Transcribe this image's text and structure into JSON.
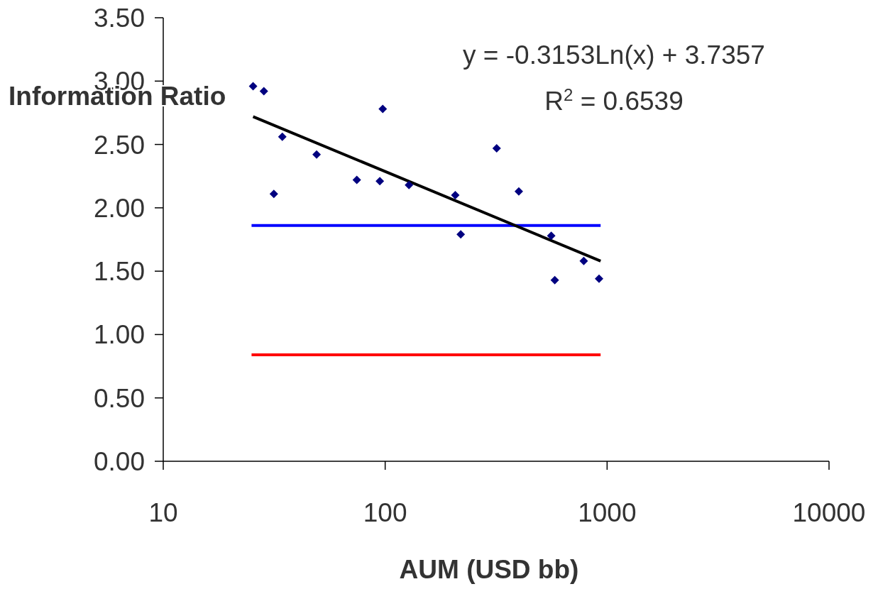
{
  "chart_data": {
    "type": "scatter",
    "xlabel": "AUM (USD bb)",
    "ylabel": "Information Ratio",
    "annotations": [
      "y = -0.3153Ln(x) + 3.7357",
      "R$^{2}$ = 0.6539"
    ],
    "log": "x",
    "xlim": [
      10,
      10000
    ],
    "xticks": [
      10,
      100,
      1000,
      10000
    ],
    "ylim": [
      0,
      3.5
    ],
    "yticks": [
      {
        "value": 0,
        "label": "0.00"
      },
      {
        "value": 0.5,
        "label": "0.50"
      },
      {
        "value": 1,
        "label": "1.00"
      },
      {
        "value": 1.5,
        "label": "1.50"
      },
      {
        "value": 2,
        "label": "2.00"
      },
      {
        "value": 2.5,
        "label": "2.50"
      },
      {
        "value": 3,
        "label": "3.00"
      },
      {
        "value": 3.5,
        "label": "3.50"
      }
    ],
    "grid": false,
    "series": [
      {
        "color": "#000080",
        "marker": "diamond",
        "x": [
          25.4,
          28.4,
          31.5,
          34.4,
          49.1,
          74.5,
          94.6,
          97.5,
          128,
          207,
          219,
          318,
          400,
          560,
          581,
          785,
          920
        ],
        "values": [
          2.96,
          2.92,
          2.11,
          2.56,
          2.42,
          2.22,
          2.21,
          2.78,
          2.18,
          2.1,
          1.79,
          2.47,
          2.13,
          1.78,
          1.43,
          1.58,
          1.44
        ]
      },
      {
        "type": "line",
        "color": "#ff0000",
        "x": [
          25,
          935
        ],
        "values": [
          0.84,
          0.84
        ]
      },
      {
        "type": "line",
        "color": "#0000ff",
        "x": [
          25,
          935
        ],
        "values": [
          1.86,
          1.86
        ]
      },
      {
        "type": "line",
        "color": "#000000",
        "x": [
          25.4,
          935
        ],
        "values": [
          2.72,
          1.58
        ]
      }
    ]
  }
}
